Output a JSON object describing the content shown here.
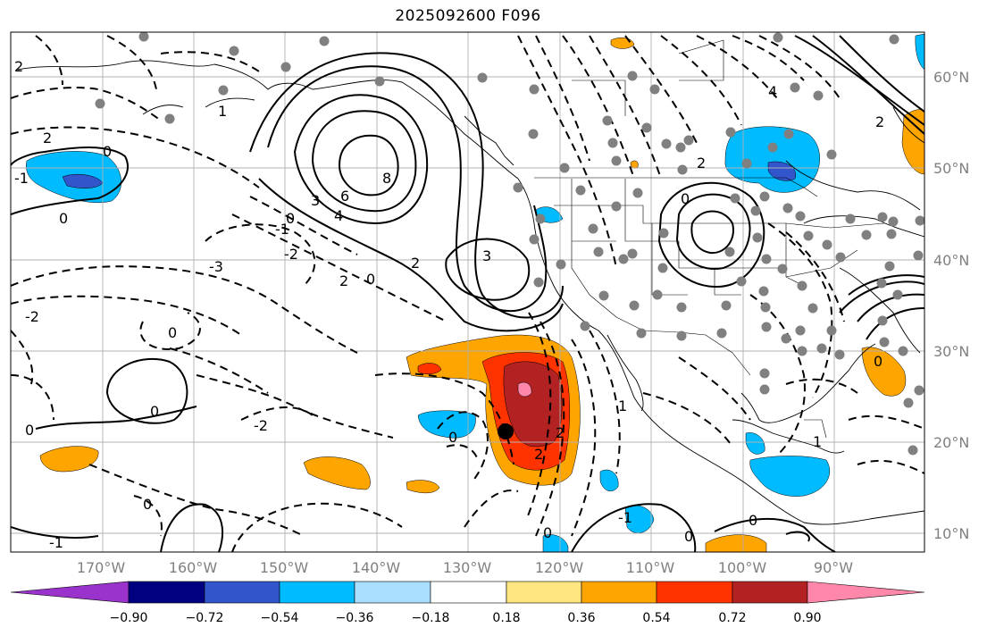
{
  "title": "2025092600 F096",
  "latitude_labels": [
    "60°N",
    "50°N",
    "40°N",
    "30°N",
    "20°N",
    "10°N"
  ],
  "longitude_labels": [
    "170°W",
    "160°W",
    "150°W",
    "140°W",
    "130°W",
    "120°W",
    "110°W",
    "100°W",
    "90°W"
  ],
  "colorbar": {
    "ticks": [
      "−0.90",
      "−0.72",
      "−0.54",
      "−0.36",
      "−0.18",
      "0.18",
      "0.36",
      "0.54",
      "0.72",
      "0.90"
    ],
    "colors": [
      "#9933cc",
      "#000080",
      "#3355cc",
      "#00bbff",
      "#aadeff",
      "#ffffff",
      "#ffe680",
      "#ffa500",
      "#ff3300",
      "#b22222",
      "#ff88aa"
    ]
  },
  "contour_labels": [
    "2",
    "2",
    "1",
    "0",
    "0",
    "0",
    "-1",
    "8",
    "6",
    "4",
    "3",
    "2",
    "0",
    "-1",
    "-2",
    "3",
    "2",
    "-3",
    "-2",
    "0",
    "0",
    "-2",
    "0",
    "-1",
    "0",
    "2",
    "2",
    "1",
    "0",
    "4",
    "2",
    "0",
    "0",
    "1",
    "0",
    "0",
    "-1",
    "0",
    "2"
  ],
  "colors": {
    "fill_orange": "#ffa500",
    "fill_red": "#ff3300",
    "fill_darkred": "#b22222",
    "fill_pink": "#ff88aa",
    "fill_cyan": "#00bbff",
    "fill_blue": "#3355cc",
    "station_gray": "#808080"
  }
}
